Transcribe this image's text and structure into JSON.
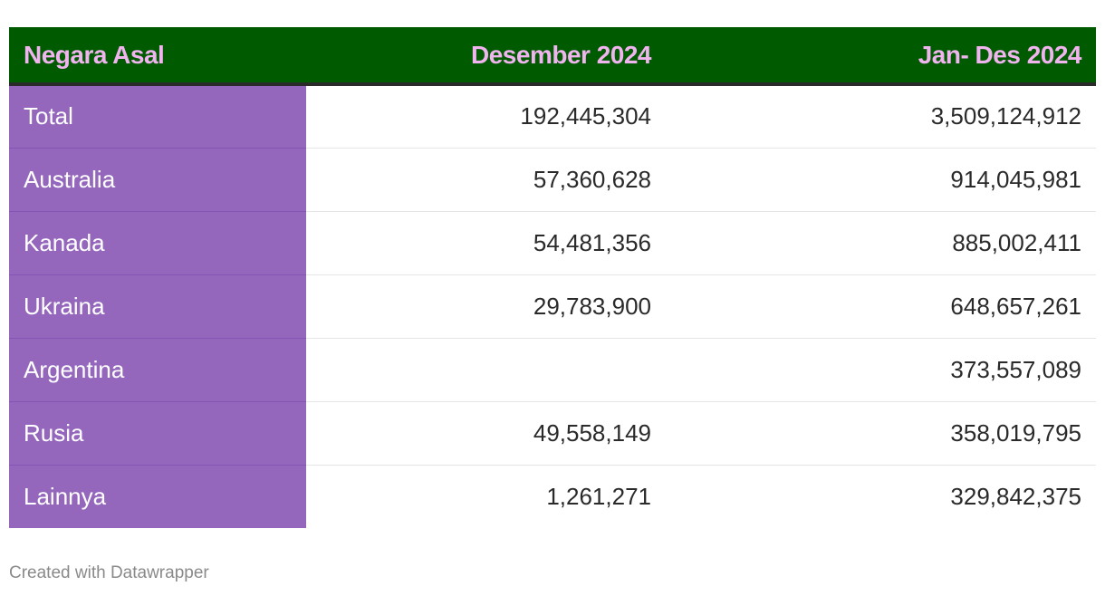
{
  "colors": {
    "header_bg": "#005a00",
    "header_text": "#f0b4ef",
    "first_col_bg": "#9467bd",
    "first_col_text": "#ffffff",
    "cell_text": "#2a2a2a",
    "footer_text": "#8a8a8a"
  },
  "chart_data": {
    "type": "table",
    "columns": [
      "Negara Asal",
      "Desember 2024",
      "Jan- Des 2024"
    ],
    "rows": [
      [
        "Total",
        "192,445,304",
        "3,509,124,912"
      ],
      [
        "Australia",
        "57,360,628",
        "914,045,981"
      ],
      [
        "Kanada",
        "54,481,356",
        "885,002,411"
      ],
      [
        "Ukraina",
        "29,783,900",
        "648,657,261"
      ],
      [
        "Argentina",
        "",
        "373,557,089"
      ],
      [
        "Rusia",
        "49,558,149",
        "358,019,795"
      ],
      [
        "Lainnya",
        "1,261,271",
        "329,842,375"
      ]
    ]
  },
  "footer": {
    "credit": "Created with Datawrapper"
  }
}
